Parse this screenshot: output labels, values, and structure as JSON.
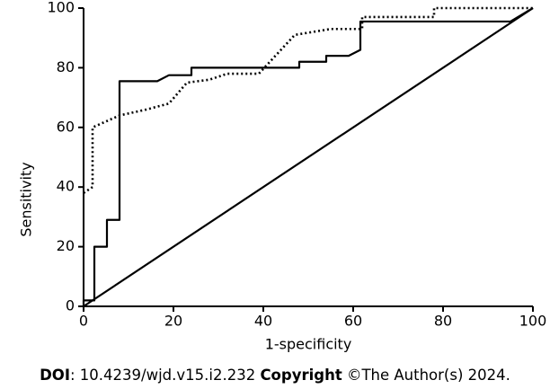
{
  "chart_data": {
    "type": "line",
    "xlabel": "1-specificity",
    "ylabel": "Sensitivity",
    "xlim": [
      0,
      100
    ],
    "ylim": [
      0,
      100
    ],
    "xticks": [
      0,
      20,
      40,
      60,
      80,
      100
    ],
    "yticks": [
      0,
      20,
      40,
      60,
      80,
      100
    ],
    "series": [
      {
        "color": "#000000",
        "dash": "solid",
        "x": [
          0,
          0,
          2.4,
          2.4,
          5.2,
          5.2,
          8,
          8,
          16.4,
          19,
          24,
          24,
          48,
          48,
          54,
          54,
          59,
          61.6,
          61.6,
          95,
          100
        ],
        "values": [
          0,
          2,
          2,
          20,
          20,
          29,
          29,
          75.5,
          75.5,
          77.5,
          77.5,
          80,
          80,
          82,
          82,
          84,
          84,
          86,
          95.5,
          95.5,
          100
        ]
      },
      {
        "color": "#000000",
        "dash": "dotted",
        "x": [
          0,
          2,
          2,
          5,
          8,
          14,
          19,
          23,
          28,
          32,
          39,
          47,
          55,
          62,
          62,
          78,
          78,
          100
        ],
        "values": [
          38,
          40,
          60,
          62,
          64,
          66,
          68,
          75,
          76,
          78,
          78,
          91,
          93,
          93,
          97,
          97,
          100,
          100
        ]
      },
      {
        "color": "#000000",
        "dash": "solid",
        "x": [
          0,
          100
        ],
        "values": [
          0,
          100
        ]
      }
    ]
  },
  "footer": {
    "parts": [
      "DOI",
      ": 10.4239/wjd.v15.i2.232 ",
      "Copyright",
      " ©The Author(s) 2024."
    ]
  }
}
